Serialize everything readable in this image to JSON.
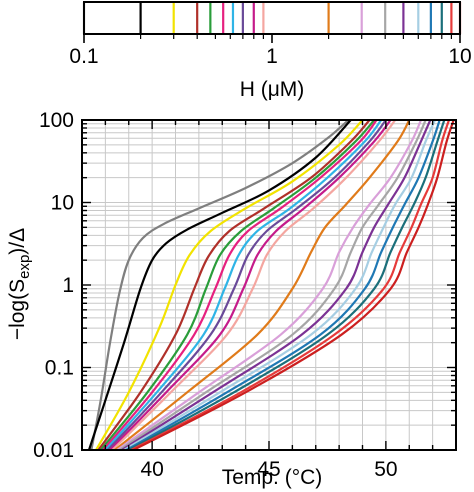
{
  "chart_data": [
    {
      "type": "color-bar",
      "xlabel": "H (μM)",
      "xscale": "log",
      "xlim": [
        0.1,
        10
      ],
      "ticks": [
        0.1,
        1,
        10
      ],
      "tick_labels": [
        "0.1",
        "1",
        "10"
      ],
      "markers": [
        {
          "h": 0.1,
          "color": "#7f7f7f"
        },
        {
          "h": 0.2,
          "color": "#000000"
        },
        {
          "h": 0.3,
          "color": "#f2e300"
        },
        {
          "h": 0.4,
          "color": "#b0302a"
        },
        {
          "h": 0.47,
          "color": "#2a9d3a"
        },
        {
          "h": 0.55,
          "color": "#e6207f"
        },
        {
          "h": 0.62,
          "color": "#2fb4e6"
        },
        {
          "h": 0.7,
          "color": "#6a4a99"
        },
        {
          "h": 0.8,
          "color": "#c51b8a"
        },
        {
          "h": 0.9,
          "color": "#f4a6a0"
        },
        {
          "h": 2,
          "color": "#e07b1a"
        },
        {
          "h": 3,
          "color": "#d9a0d9"
        },
        {
          "h": 4,
          "color": "#a6a6a6"
        },
        {
          "h": 5,
          "color": "#7b3294"
        },
        {
          "h": 6,
          "color": "#a6cee3"
        },
        {
          "h": 7,
          "color": "#1f78b4"
        },
        {
          "h": 8,
          "color": "#1b6f7a"
        },
        {
          "h": 9,
          "color": "#e63a3a"
        },
        {
          "h": 10,
          "color": "#cc1f1f"
        }
      ]
    },
    {
      "type": "line",
      "xlabel": "Temp. (°C)",
      "ylabel_main": "−log(S",
      "ylabel_sub": "exp",
      "ylabel_end": ")/Δ",
      "xlim": [
        37,
        53
      ],
      "xticks": [
        40,
        45,
        50
      ],
      "ylim": [
        0.01,
        100
      ],
      "yscale": "log",
      "yticks": [
        0.01,
        0.1,
        1,
        10,
        100
      ],
      "ytick_labels": [
        "0.01",
        "0.1",
        "1",
        "10",
        "100"
      ],
      "grid": true,
      "series": [
        {
          "color": "#7f7f7f",
          "x": [
            37.4,
            37.8,
            38.2,
            38.6,
            39.0,
            39.6,
            40.5,
            42.0,
            44.0,
            46.0,
            47.5,
            48.4
          ],
          "y": [
            0.01,
            0.04,
            0.2,
            0.8,
            2.0,
            3.7,
            5.5,
            8.5,
            15,
            30,
            60,
            100
          ]
        },
        {
          "color": "#000000",
          "x": [
            37.3,
            38.0,
            38.8,
            39.5,
            40.0,
            40.6,
            41.5,
            43.0,
            45.0,
            47.0,
            48.5
          ],
          "y": [
            0.01,
            0.04,
            0.2,
            0.9,
            2.0,
            3.2,
            4.7,
            7.5,
            14,
            35,
            100
          ]
        },
        {
          "color": "#f2e300",
          "x": [
            37.6,
            39.0,
            40.3,
            41.0,
            41.6,
            42.5,
            44.0,
            46.0,
            48.0,
            49.0
          ],
          "y": [
            0.01,
            0.05,
            0.3,
            1.0,
            2.3,
            4.5,
            8.5,
            18,
            50,
            100
          ]
        },
        {
          "color": "#b0302a",
          "x": [
            37.7,
            39.5,
            41.0,
            41.8,
            42.4,
            43.3,
            44.8,
            46.8,
            48.5,
            49.3
          ],
          "y": [
            0.01,
            0.05,
            0.25,
            0.9,
            2.2,
            4.5,
            8.5,
            20,
            55,
            100
          ]
        },
        {
          "color": "#2a9d3a",
          "x": [
            37.8,
            39.8,
            41.5,
            42.3,
            42.9,
            43.8,
            45.2,
            47.0,
            48.7,
            49.5
          ],
          "y": [
            0.01,
            0.05,
            0.25,
            0.9,
            2.3,
            4.5,
            8.5,
            20,
            55,
            100
          ]
        },
        {
          "color": "#e6207f",
          "x": [
            37.9,
            40.0,
            41.8,
            42.7,
            43.3,
            44.1,
            45.5,
            47.2,
            48.9,
            49.6
          ],
          "y": [
            0.01,
            0.05,
            0.25,
            0.9,
            2.3,
            4.5,
            8.5,
            20,
            55,
            100
          ]
        },
        {
          "color": "#2fb4e6",
          "x": [
            38.0,
            40.2,
            42.2,
            43.1,
            43.7,
            44.5,
            45.9,
            47.5,
            49.1,
            49.8
          ],
          "y": [
            0.01,
            0.05,
            0.25,
            0.9,
            2.3,
            4.5,
            8.5,
            20,
            55,
            100
          ]
        },
        {
          "color": "#6a4a99",
          "x": [
            38.1,
            40.4,
            42.5,
            43.5,
            44.1,
            44.9,
            46.2,
            47.8,
            49.3,
            50.0
          ],
          "y": [
            0.01,
            0.05,
            0.25,
            0.9,
            2.3,
            4.5,
            8.5,
            20,
            55,
            100
          ]
        },
        {
          "color": "#c51b8a",
          "x": [
            38.2,
            40.6,
            42.9,
            43.9,
            44.5,
            45.3,
            46.5,
            48.0,
            49.5,
            50.2
          ],
          "y": [
            0.01,
            0.05,
            0.25,
            0.9,
            2.3,
            4.5,
            8.5,
            20,
            55,
            100
          ]
        },
        {
          "color": "#f4a6a0",
          "x": [
            38.3,
            40.8,
            43.2,
            44.3,
            44.9,
            45.7,
            46.9,
            48.3,
            49.7,
            50.4
          ],
          "y": [
            0.01,
            0.05,
            0.25,
            0.9,
            2.3,
            4.5,
            8.5,
            20,
            55,
            100
          ]
        },
        {
          "color": "#e07b1a",
          "x": [
            38.4,
            41.5,
            44.5,
            46.0,
            46.8,
            47.4,
            48.3,
            49.3,
            50.5,
            51.0
          ],
          "y": [
            0.01,
            0.05,
            0.25,
            0.9,
            2.5,
            5.0,
            9.5,
            20,
            55,
            100
          ]
        },
        {
          "color": "#d9a0d9",
          "x": [
            38.5,
            42.0,
            45.5,
            47.3,
            48.0,
            48.6,
            49.3,
            50.2,
            51.1,
            51.5
          ],
          "y": [
            0.01,
            0.05,
            0.25,
            0.9,
            2.5,
            5.0,
            9.5,
            20,
            55,
            100
          ]
        },
        {
          "color": "#a6a6a6",
          "x": [
            38.6,
            42.3,
            46.0,
            47.8,
            48.5,
            49.0,
            49.7,
            50.5,
            51.3,
            51.7
          ],
          "y": [
            0.01,
            0.05,
            0.25,
            0.9,
            2.5,
            5.0,
            9.5,
            20,
            55,
            100
          ]
        },
        {
          "color": "#7b3294",
          "x": [
            38.7,
            42.6,
            46.4,
            48.3,
            49.0,
            49.5,
            50.1,
            50.8,
            51.5,
            51.9
          ],
          "y": [
            0.01,
            0.05,
            0.25,
            0.9,
            2.5,
            5.0,
            9.5,
            20,
            55,
            100
          ]
        },
        {
          "color": "#a6cee3",
          "x": [
            38.8,
            42.9,
            46.8,
            48.7,
            49.4,
            49.9,
            50.4,
            51.1,
            51.7,
            52.1
          ],
          "y": [
            0.01,
            0.05,
            0.25,
            0.9,
            2.5,
            5.0,
            9.5,
            20,
            55,
            100
          ]
        },
        {
          "color": "#1f78b4",
          "x": [
            38.9,
            43.2,
            47.2,
            49.1,
            49.8,
            50.3,
            50.8,
            51.4,
            52.0,
            52.3
          ],
          "y": [
            0.01,
            0.05,
            0.25,
            0.9,
            2.5,
            5.0,
            9.5,
            20,
            55,
            100
          ]
        },
        {
          "color": "#1b6f7a",
          "x": [
            39.0,
            43.5,
            47.5,
            49.5,
            50.2,
            50.7,
            51.2,
            51.7,
            52.2,
            52.5
          ],
          "y": [
            0.01,
            0.05,
            0.25,
            0.9,
            2.5,
            5.0,
            9.5,
            20,
            55,
            100
          ]
        },
        {
          "color": "#e63a3a",
          "x": [
            39.1,
            43.8,
            47.8,
            49.9,
            50.6,
            51.1,
            51.5,
            52.0,
            52.4,
            52.7
          ],
          "y": [
            0.01,
            0.05,
            0.25,
            0.9,
            2.5,
            5.0,
            9.5,
            20,
            55,
            100
          ]
        },
        {
          "color": "#cc1f1f",
          "x": [
            39.2,
            44.0,
            48.1,
            50.2,
            50.9,
            51.4,
            51.8,
            52.2,
            52.6,
            52.9
          ],
          "y": [
            0.01,
            0.05,
            0.25,
            0.9,
            2.5,
            5.0,
            9.5,
            20,
            55,
            100
          ]
        }
      ]
    }
  ]
}
